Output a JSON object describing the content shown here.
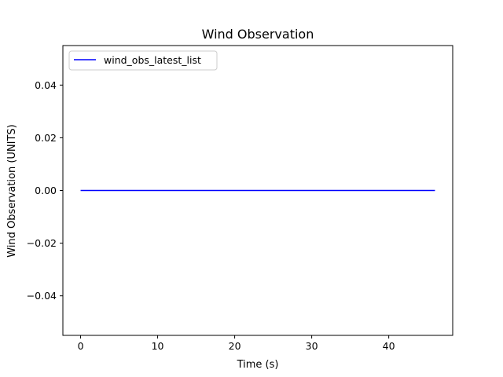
{
  "chart_data": {
    "type": "line",
    "title": "Wind Observation",
    "xlabel": "Time (s)",
    "ylabel": "Wind Observation (UNITS)",
    "xlim": [
      -2.3,
      48.3
    ],
    "ylim": [
      -0.055,
      0.055
    ],
    "x_ticks": [
      0,
      10,
      20,
      30,
      40
    ],
    "x_tick_labels": [
      "0",
      "10",
      "20",
      "30",
      "40"
    ],
    "y_ticks": [
      -0.04,
      -0.02,
      0.0,
      0.02,
      0.04
    ],
    "y_tick_labels": [
      "−0.04",
      "−0.02",
      "0.00",
      "0.02",
      "0.04"
    ],
    "grid": false,
    "legend_position": "top-left",
    "series": [
      {
        "name": "wind_obs_latest_list",
        "color": "#0000ff",
        "x": [
          0,
          46
        ],
        "y": [
          0,
          0
        ]
      }
    ]
  }
}
